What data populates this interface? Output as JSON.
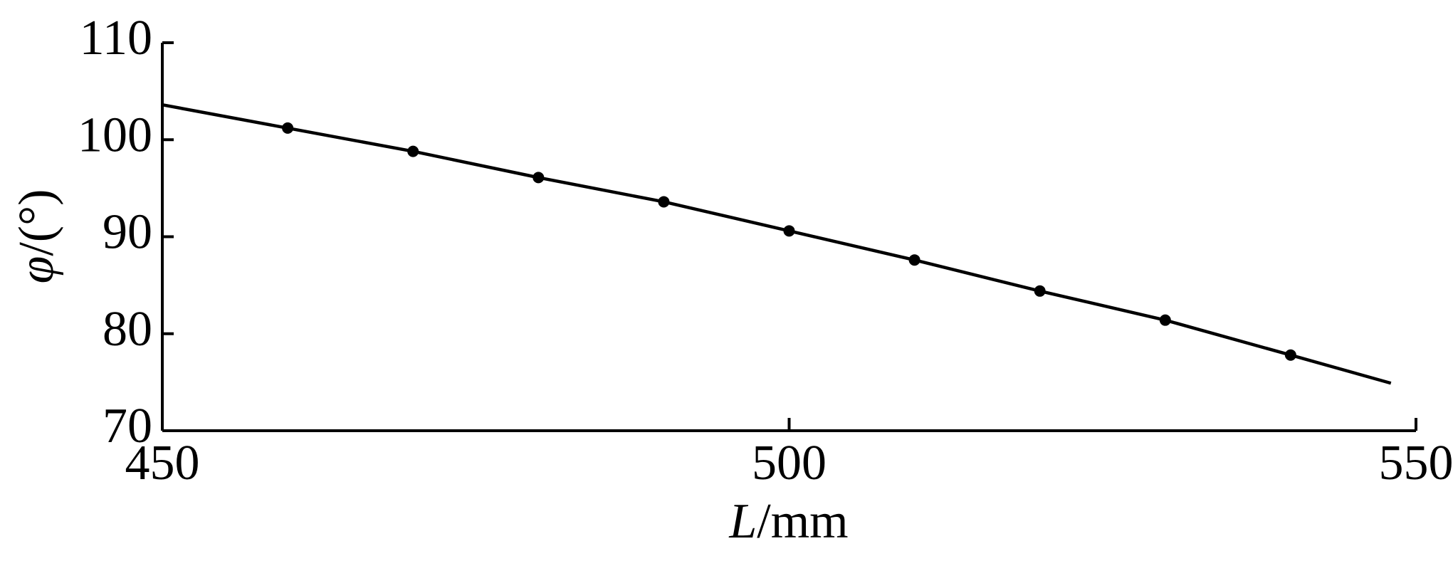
{
  "chart_data": {
    "type": "line",
    "x_label": {
      "symbol": "L",
      "unit": "/mm"
    },
    "y_label": {
      "symbol": "φ",
      "unit": "/(°)"
    },
    "line": {
      "color": "#000000",
      "x": [
        450,
        460,
        470,
        480,
        490,
        500,
        510,
        520,
        530,
        540,
        548
      ],
      "values": [
        103.6,
        101.2,
        98.8,
        96.1,
        93.6,
        90.6,
        87.6,
        84.4,
        81.4,
        77.8,
        74.9
      ]
    },
    "points": {
      "color": "#000000",
      "x": [
        460,
        470,
        480,
        490,
        500,
        510,
        520,
        530,
        540
      ],
      "values": [
        101.2,
        98.8,
        96.1,
        93.6,
        90.6,
        87.6,
        84.4,
        81.4,
        77.8
      ]
    },
    "xlim": [
      450,
      550
    ],
    "xticks": [
      450,
      500,
      550
    ],
    "ylim": [
      70,
      110
    ],
    "yticks": [
      70,
      80,
      90,
      100,
      110
    ]
  }
}
